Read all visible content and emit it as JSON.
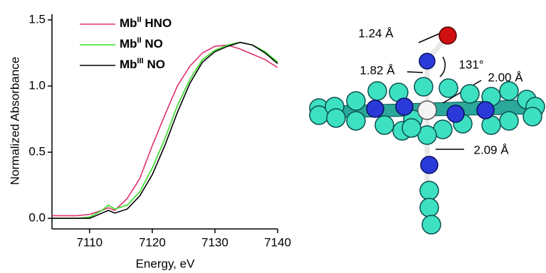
{
  "chart_data": {
    "type": "line",
    "xlabel": "Energy, eV",
    "ylabel": "Normalized Absorbance",
    "x": [
      7104,
      7106,
      7108,
      7110,
      7112,
      7113,
      7114,
      7116,
      7118,
      7120,
      7122,
      7124,
      7126,
      7128,
      7130,
      7132,
      7134,
      7136,
      7138,
      7140
    ],
    "series": [
      {
        "name": "MbII HNO",
        "color": "#e0306e",
        "values": [
          0.02,
          0.02,
          0.02,
          0.03,
          0.06,
          0.08,
          0.06,
          0.15,
          0.3,
          0.55,
          0.78,
          1.0,
          1.15,
          1.25,
          1.3,
          1.31,
          1.28,
          1.24,
          1.2,
          1.14
        ]
      },
      {
        "name": "MbII NO",
        "color": "#33dd22",
        "values": [
          0.0,
          0.0,
          0.0,
          0.01,
          0.06,
          0.1,
          0.07,
          0.1,
          0.2,
          0.38,
          0.6,
          0.85,
          1.05,
          1.2,
          1.27,
          1.31,
          1.33,
          1.31,
          1.26,
          1.18
        ]
      },
      {
        "name": "MbIII NO",
        "color": "#000000",
        "values": [
          0.0,
          0.0,
          0.0,
          0.0,
          0.04,
          0.06,
          0.04,
          0.07,
          0.17,
          0.33,
          0.55,
          0.8,
          1.02,
          1.18,
          1.26,
          1.3,
          1.33,
          1.31,
          1.25,
          1.17
        ]
      }
    ],
    "xlim": [
      7104,
      7140
    ],
    "ylim": [
      -0.08,
      1.5
    ],
    "xticks": [
      7110,
      7120,
      7130,
      7140
    ],
    "yticks": [
      {
        "value": 0,
        "label": "0.0"
      },
      0.5,
      {
        "value": 1,
        "label": "1.0"
      },
      1.5
    ],
    "legend": "upper left"
  },
  "structure": {
    "labels": [
      "1.24 Å",
      "1.82 Å",
      "131°",
      "2.00 Å",
      "2.09 Å"
    ]
  }
}
